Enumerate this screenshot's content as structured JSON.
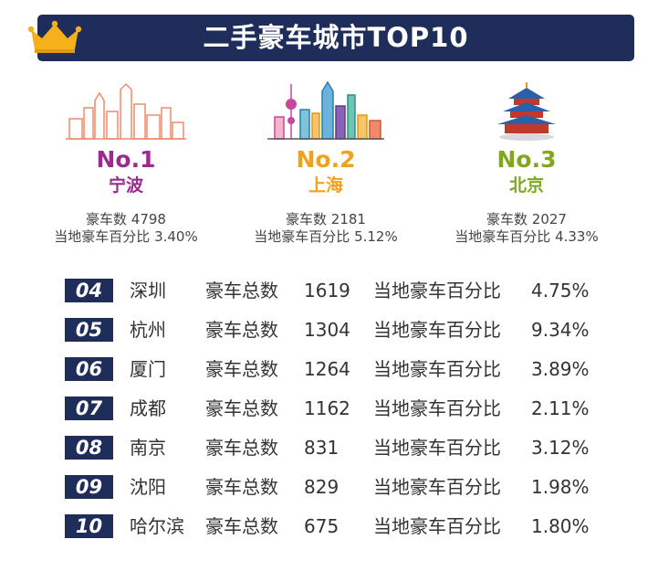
{
  "chart_data": {
    "type": "table",
    "title": "二手豪车城市TOP10",
    "top3": [
      {
        "rank": "No.1",
        "city": "宁波",
        "count_label": "豪车数",
        "count": 4798,
        "pct_label": "当地豪车百分比",
        "pct": "3.40%",
        "color": "#9b2b8e"
      },
      {
        "rank": "No.2",
        "city": "上海",
        "count_label": "豪车数",
        "count": 2181,
        "pct_label": "当地豪车百分比",
        "pct": "5.12%",
        "color": "#f0a21e"
      },
      {
        "rank": "No.3",
        "city": "北京",
        "count_label": "豪车数",
        "count": 2027,
        "pct_label": "当地豪车百分比",
        "pct": "4.33%",
        "color": "#7fa81e"
      }
    ],
    "rows": [
      {
        "rank": "04",
        "city": "深圳",
        "count_label": "豪车总数",
        "count": 1619,
        "pct_label": "当地豪车百分比",
        "pct": "4.75%"
      },
      {
        "rank": "05",
        "city": "杭州",
        "count_label": "豪车总数",
        "count": 1304,
        "pct_label": "当地豪车百分比",
        "pct": "9.34%"
      },
      {
        "rank": "06",
        "city": "厦门",
        "count_label": "豪车总数",
        "count": 1264,
        "pct_label": "当地豪车百分比",
        "pct": "3.89%"
      },
      {
        "rank": "07",
        "city": "成都",
        "count_label": "豪车总数",
        "count": 1162,
        "pct_label": "当地豪车百分比",
        "pct": "2.11%"
      },
      {
        "rank": "08",
        "city": "南京",
        "count_label": "豪车总数",
        "count": 831,
        "pct_label": "当地豪车百分比",
        "pct": "3.12%"
      },
      {
        "rank": "09",
        "city": "沈阳",
        "count_label": "豪车总数",
        "count": 829,
        "pct_label": "当地豪车百分比",
        "pct": "1.98%"
      },
      {
        "rank": "10",
        "city": "哈尔滨",
        "count_label": "豪车总数",
        "count": 675,
        "pct_label": "当地豪车百分比",
        "pct": "1.80%"
      }
    ]
  },
  "colors": {
    "banner": "#1f2d5a",
    "crown": "#f5b01c",
    "badge": "#1f2d5a",
    "ningbo_skyline": "#f08a6a",
    "shanghai_skyline": "#c7479c",
    "beijing_temple": "#3aa0c8"
  },
  "icons": [
    "crown-icon",
    "ningbo-skyline-icon",
    "shanghai-skyline-icon",
    "beijing-temple-icon"
  ]
}
